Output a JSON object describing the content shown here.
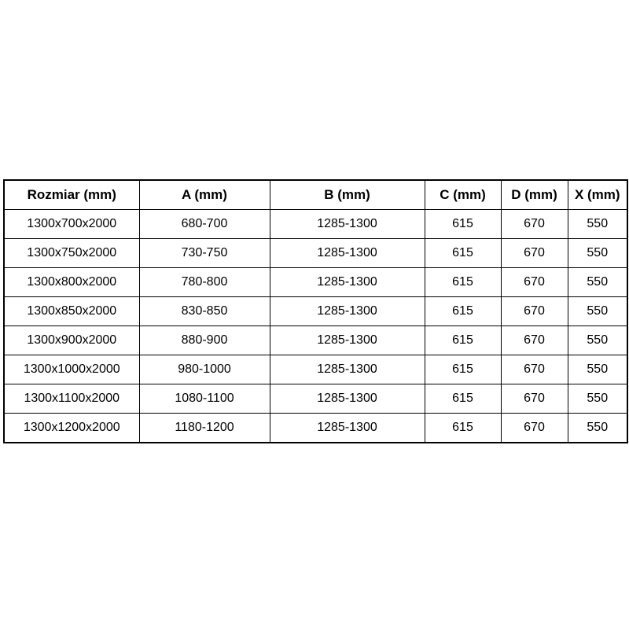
{
  "table": {
    "columns": [
      "Rozmiar (mm)",
      "A (mm)",
      "B (mm)",
      "C (mm)",
      "D (mm)",
      "X (mm)"
    ],
    "rows": [
      [
        "1300x700x2000",
        "680-700",
        "1285-1300",
        "615",
        "670",
        "550"
      ],
      [
        "1300x750x2000",
        "730-750",
        "1285-1300",
        "615",
        "670",
        "550"
      ],
      [
        "1300x800x2000",
        "780-800",
        "1285-1300",
        "615",
        "670",
        "550"
      ],
      [
        "1300x850x2000",
        "830-850",
        "1285-1300",
        "615",
        "670",
        "550"
      ],
      [
        "1300x900x2000",
        "880-900",
        "1285-1300",
        "615",
        "670",
        "550"
      ],
      [
        "1300x1000x2000",
        "980-1000",
        "1285-1300",
        "615",
        "670",
        "550"
      ],
      [
        "1300x1100x2000",
        "1080-1100",
        "1285-1300",
        "615",
        "670",
        "550"
      ],
      [
        "1300x1200x2000",
        "1180-1200",
        "1285-1300",
        "615",
        "670",
        "550"
      ]
    ],
    "colors": {
      "border": "#000000",
      "text": "#000000",
      "background": "#ffffff"
    }
  }
}
